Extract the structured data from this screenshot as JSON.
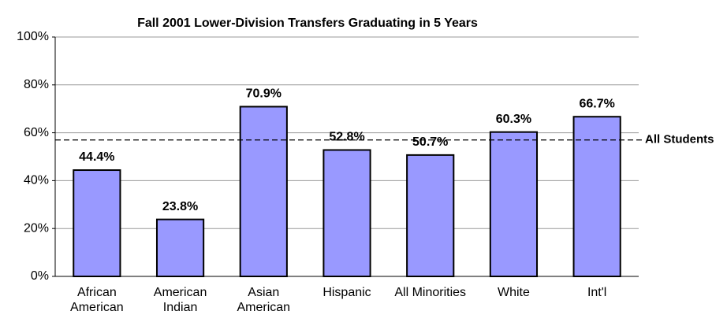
{
  "chart_data": {
    "type": "bar",
    "title": "Fall 2001 Lower-Division Transfers Graduating in 5 Years",
    "categories": [
      "African American",
      "American Indian",
      "Asian American",
      "Hispanic",
      "All Minorities",
      "White",
      "Int'l"
    ],
    "values": [
      44.4,
      23.8,
      70.9,
      52.8,
      50.7,
      60.3,
      66.7
    ],
    "value_labels": [
      "44.4%",
      "23.8%",
      "70.9%",
      "52.8%",
      "50.7%",
      "60.3%",
      "66.7%"
    ],
    "color": "#9999ff",
    "ylim": [
      0,
      100
    ],
    "yticks": [
      {
        "value": 0,
        "label": "0%"
      },
      {
        "value": 20,
        "label": "20%"
      },
      {
        "value": 40,
        "label": "40%"
      },
      {
        "value": 60,
        "label": "60%"
      },
      {
        "value": 80,
        "label": "80%"
      },
      {
        "value": 100,
        "label": "100%"
      }
    ],
    "grid": true,
    "reference_line": {
      "label": "All Students",
      "value": 57
    }
  }
}
